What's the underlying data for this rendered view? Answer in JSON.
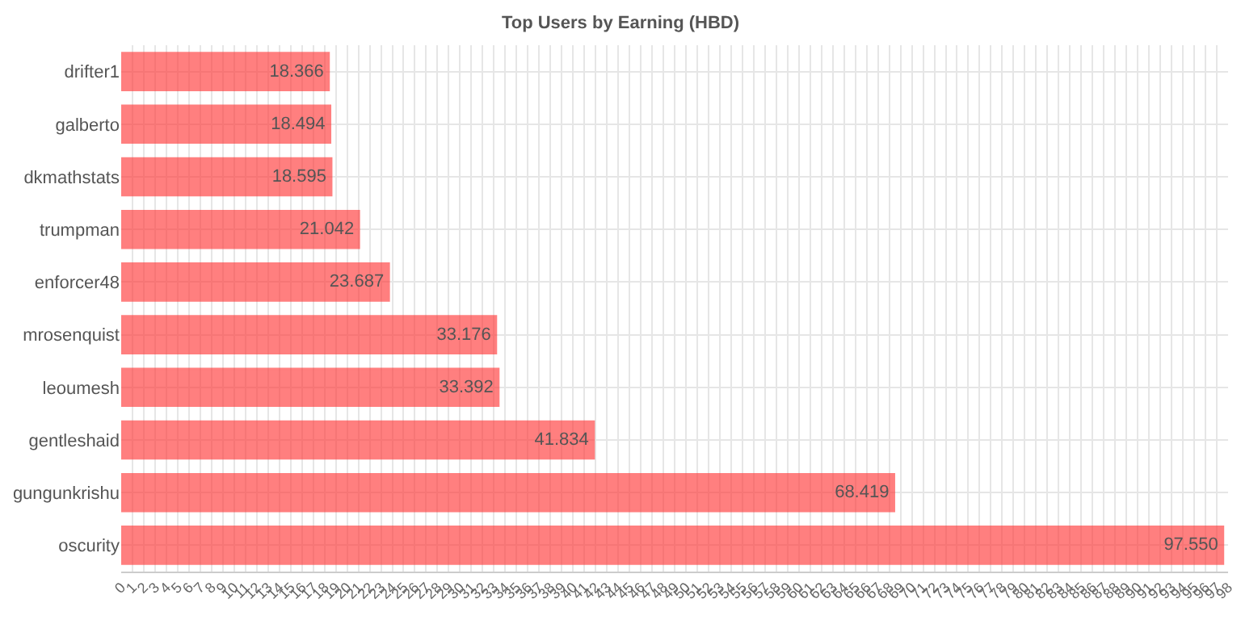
{
  "chart_data": {
    "type": "bar",
    "orientation": "horizontal",
    "title": "Top Users by Earning (HBD)",
    "categories": [
      "drifter1",
      "galberto",
      "dkmathstats",
      "trumpman",
      "enforcer48",
      "mrosenquist",
      "leoumesh",
      "gentleshaid",
      "gungunkrishu",
      "oscurity"
    ],
    "values": [
      18.366,
      18.494,
      18.595,
      21.042,
      23.687,
      33.176,
      33.392,
      41.834,
      68.419,
      97.55
    ],
    "value_labels": [
      "18.366",
      "18.494",
      "18.595",
      "21.042",
      "23.687",
      "33.176",
      "33.392",
      "41.834",
      "68.419",
      "97.550"
    ],
    "color": "#ff3b3b",
    "xlim": [
      0,
      98
    ],
    "xticks": [
      0,
      1,
      2,
      3,
      4,
      5,
      6,
      7,
      8,
      9,
      10,
      11,
      12,
      13,
      14,
      15,
      16,
      17,
      18,
      19,
      20,
      21,
      22,
      23,
      24,
      25,
      26,
      27,
      28,
      29,
      30,
      31,
      32,
      33,
      34,
      35,
      36,
      37,
      38,
      39,
      40,
      41,
      42,
      43,
      44,
      45,
      46,
      47,
      48,
      49,
      50,
      51,
      52,
      53,
      54,
      55,
      56,
      57,
      58,
      59,
      60,
      61,
      62,
      63,
      64,
      65,
      66,
      67,
      68,
      69,
      70,
      71,
      72,
      73,
      74,
      75,
      76,
      77,
      78,
      79,
      80,
      81,
      82,
      83,
      84,
      85,
      86,
      87,
      88,
      89,
      90,
      91,
      92,
      93,
      94,
      95,
      96,
      97,
      98
    ],
    "grid": true
  }
}
